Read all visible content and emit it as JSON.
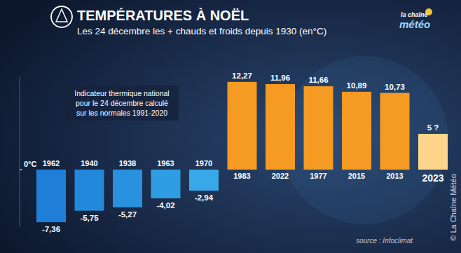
{
  "chart_data": {
    "type": "bar",
    "title": "TEMPÉRATURES À NOËL",
    "subtitle": "Les 24 décembre les + chauds et froids depuis 1930 (en°C)",
    "annotation": [
      "Indicateur thermique national",
      "pour le 24 décembre calculé",
      "sur les normales 1991-2020"
    ],
    "source": "source : Infoclimat",
    "credit": "© La Chaîne Météo",
    "logo": [
      "la chaîne",
      "météo"
    ],
    "categories": [
      "1962",
      "1940",
      "1938",
      "1963",
      "1970",
      "1983",
      "2022",
      "1977",
      "2015",
      "2013",
      "2023"
    ],
    "values": [
      -7.36,
      -5.75,
      -5.27,
      -4.02,
      -2.94,
      12.27,
      11.96,
      11.66,
      10.89,
      10.73,
      5
    ],
    "value_labels": [
      "-7,36",
      "-5,75",
      "-5,27",
      "-4,02",
      "-2,94",
      "12,27",
      "11,96",
      "11,66",
      "10,89",
      "10,73",
      "5 ?"
    ],
    "colors": [
      "#1f7fd8",
      "#2288dc",
      "#2892e0",
      "#2f9de4",
      "#37a8e8",
      "#f59a22",
      "#f59a22",
      "#f59a22",
      "#f59a22",
      "#f59a22",
      "#fcd48a"
    ],
    "ylim": [
      -8,
      13
    ],
    "yticks": [
      {
        "value": 0,
        "label": "0°C"
      }
    ],
    "data_labels": true,
    "grid": false
  }
}
